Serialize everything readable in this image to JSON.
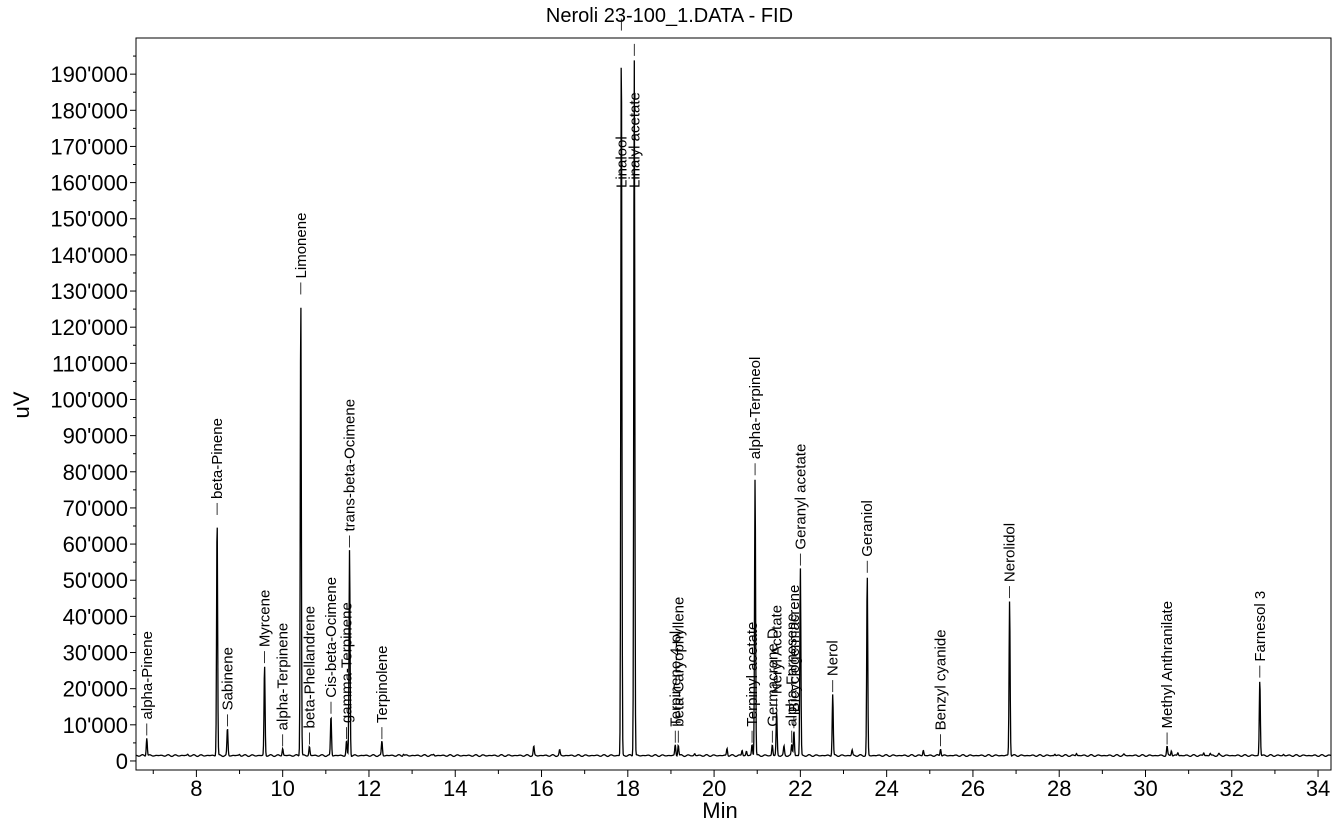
{
  "chart_data": {
    "type": "line",
    "title": "Neroli 23-100_1.DATA - FID",
    "xlabel": "Min",
    "ylabel": "uV",
    "xlim": [
      6.6,
      34.3
    ],
    "ylim": [
      -2500,
      200000
    ],
    "x_ticks": [
      8,
      10,
      12,
      14,
      16,
      18,
      20,
      22,
      24,
      26,
      28,
      30,
      32,
      34
    ],
    "x_tick_labels": [
      "8",
      "10",
      "12",
      "14",
      "16",
      "18",
      "20",
      "22",
      "24",
      "26",
      "28",
      "30",
      "32",
      "34"
    ],
    "y_ticks": [
      0,
      10000,
      20000,
      30000,
      40000,
      50000,
      60000,
      70000,
      80000,
      90000,
      100000,
      110000,
      120000,
      130000,
      140000,
      150000,
      160000,
      170000,
      180000,
      190000
    ],
    "y_tick_labels": [
      "0",
      "10'000",
      "20'000",
      "30'000",
      "40'000",
      "50'000",
      "60'000",
      "70'000",
      "80'000",
      "90'000",
      "100'000",
      "110'000",
      "120'000",
      "130'000",
      "140'000",
      "150'000",
      "160'000",
      "170'000",
      "180'000",
      "190'000"
    ],
    "baseline": 1500,
    "grid": false,
    "peaks": [
      {
        "name": "alpha-Pinene",
        "rt": 6.85,
        "height": 5000
      },
      {
        "name": "beta-Pinene",
        "rt": 8.48,
        "height": 66000
      },
      {
        "name": "Sabinene",
        "rt": 8.72,
        "height": 7500
      },
      {
        "name": "Myrcene",
        "rt": 9.58,
        "height": 25000
      },
      {
        "name": "alpha-Terpinene",
        "rt": 10.0,
        "height": 2000
      },
      {
        "name": "Limonene",
        "rt": 10.42,
        "height": 127000
      },
      {
        "name": "beta-Phellandrene",
        "rt": 10.62,
        "height": 2500
      },
      {
        "name": "Cis-beta-Ocimene",
        "rt": 11.12,
        "height": 11000
      },
      {
        "name": "gamma-Terpinene",
        "rt": 11.48,
        "height": 4000
      },
      {
        "name": "trans-beta-Ocimene",
        "rt": 11.55,
        "height": 57000
      },
      {
        "name": "Terpinolene",
        "rt": 12.3,
        "height": 4000
      },
      {
        "name": "Linalool",
        "rt": 17.85,
        "height": 200000
      },
      {
        "name": "Linalyl acetate",
        "rt": 18.15,
        "height": 193000
      },
      {
        "name": "Terpinene-4-ol",
        "rt": 19.1,
        "height": 3000
      },
      {
        "name": "beta-Caryophyllene",
        "rt": 19.17,
        "height": 3000
      },
      {
        "name": "Terpinyl acetate",
        "rt": 20.88,
        "height": 3000
      },
      {
        "name": "alpha-Terpineol",
        "rt": 20.95,
        "height": 77000
      },
      {
        "name": "Germacrene D",
        "rt": 21.35,
        "height": 3000
      },
      {
        "name": "Neryl Acetate",
        "rt": 21.45,
        "height": 12000
      },
      {
        "name": "alpha-Farnesene",
        "rt": 21.8,
        "height": 3000
      },
      {
        "name": "Bicyclogermacrene",
        "rt": 21.85,
        "height": 7000
      },
      {
        "name": "Geranyl acetate",
        "rt": 22.0,
        "height": 52000
      },
      {
        "name": "Nerol",
        "rt": 22.75,
        "height": 17000
      },
      {
        "name": "Geraniol",
        "rt": 23.55,
        "height": 50000
      },
      {
        "name": "Benzyl cyanide",
        "rt": 25.25,
        "height": 2000
      },
      {
        "name": "Nerolidol",
        "rt": 26.85,
        "height": 43000
      },
      {
        "name": "Methyl Anthranilate",
        "rt": 30.5,
        "height": 2500
      },
      {
        "name": "Farnesol 3",
        "rt": 32.65,
        "height": 21000
      }
    ],
    "minor_peaks": [
      {
        "rt": 7.8,
        "height": 300
      },
      {
        "rt": 9.0,
        "height": 300
      },
      {
        "rt": 12.8,
        "height": 500
      },
      {
        "rt": 13.5,
        "height": 300
      },
      {
        "rt": 15.82,
        "height": 2500
      },
      {
        "rt": 16.42,
        "height": 1500
      },
      {
        "rt": 19.55,
        "height": 500
      },
      {
        "rt": 20.3,
        "height": 2000
      },
      {
        "rt": 20.65,
        "height": 1500
      },
      {
        "rt": 20.75,
        "height": 1200
      },
      {
        "rt": 21.62,
        "height": 2500
      },
      {
        "rt": 23.2,
        "height": 1500
      },
      {
        "rt": 24.85,
        "height": 1500
      },
      {
        "rt": 27.9,
        "height": 400
      },
      {
        "rt": 28.4,
        "height": 600
      },
      {
        "rt": 29.5,
        "height": 300
      },
      {
        "rt": 30.6,
        "height": 1500
      },
      {
        "rt": 30.75,
        "height": 800
      },
      {
        "rt": 31.35,
        "height": 800
      },
      {
        "rt": 31.5,
        "height": 600
      },
      {
        "rt": 31.7,
        "height": 400
      },
      {
        "rt": 33.2,
        "height": 300
      }
    ]
  }
}
